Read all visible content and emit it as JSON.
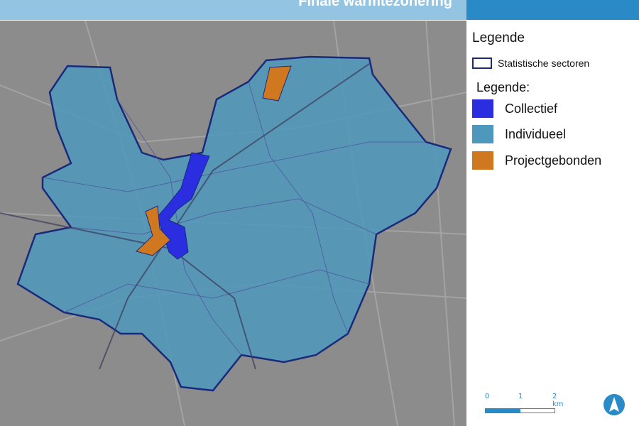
{
  "header": {
    "title": "Finale warmtezonering"
  },
  "legend": {
    "title": "Legende",
    "outline_label": "Statistische sectoren",
    "subtitle": "Legende:",
    "items": [
      {
        "label": "Collectief",
        "color": "#2b2de0"
      },
      {
        "label": "Individueel",
        "color": "#4f98bd"
      },
      {
        "label": "Projectgebonden",
        "color": "#d0781f"
      }
    ]
  },
  "scale_bar": {
    "labels": [
      "0",
      "1",
      "2 km"
    ]
  },
  "north_arrow": {
    "icon": "north-arrow-icon"
  },
  "colors": {
    "header_light": "#93c4e2",
    "header_dark": "#2a8ac8",
    "outline": "#1a2a7a"
  }
}
